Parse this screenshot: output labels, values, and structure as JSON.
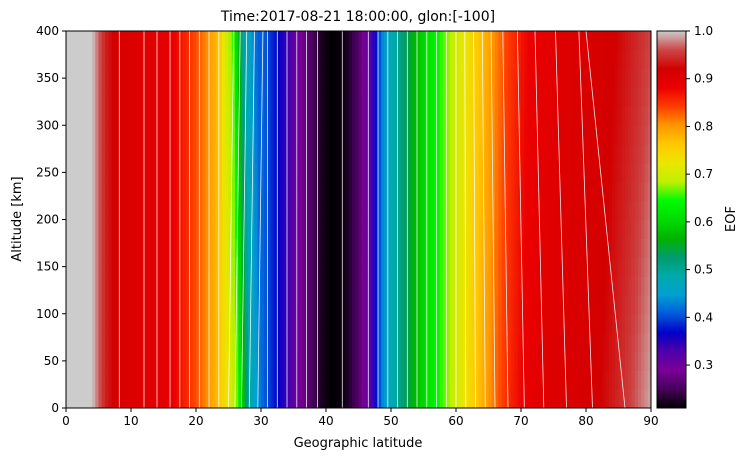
{
  "chart_data": {
    "type": "heatmap",
    "title": "Time:2017-08-21 18:00:00, glon:[-100]",
    "xlabel": "Geographic latitude",
    "ylabel": "Altitude [km]",
    "xlim": [
      0,
      90
    ],
    "ylim": [
      0,
      400
    ],
    "xticks": [
      0,
      10,
      20,
      30,
      40,
      50,
      60,
      70,
      80,
      90
    ],
    "yticks": [
      0,
      50,
      100,
      150,
      200,
      250,
      300,
      350,
      400
    ],
    "colorbar": {
      "label": "EOF",
      "range": [
        0.21,
        1.0
      ],
      "ticks": [
        "0.3",
        "0.4",
        "0.5",
        "0.6",
        "0.7",
        "0.8",
        "0.9",
        "1.0"
      ],
      "tick_values": [
        0.3,
        0.4,
        0.5,
        0.6,
        0.7,
        0.8,
        0.9,
        1.0
      ]
    },
    "latitude_profile": {
      "lat": [
        0,
        4,
        6,
        8,
        12,
        16,
        19,
        21,
        23,
        25,
        26.5,
        28,
        30,
        32,
        34,
        36,
        38,
        39.5,
        41,
        43,
        45,
        47,
        49,
        51,
        53,
        55,
        57,
        59,
        61,
        63,
        65,
        67,
        70,
        74,
        78,
        82,
        86,
        90
      ],
      "eof": [
        1.0,
        1.0,
        0.94,
        0.91,
        0.9,
        0.89,
        0.85,
        0.82,
        0.78,
        0.72,
        0.66,
        0.5,
        0.42,
        0.38,
        0.34,
        0.29,
        0.25,
        0.22,
        0.21,
        0.22,
        0.26,
        0.33,
        0.45,
        0.5,
        0.55,
        0.6,
        0.64,
        0.68,
        0.72,
        0.76,
        0.8,
        0.84,
        0.88,
        0.9,
        0.91,
        0.92,
        0.95,
        0.99
      ]
    },
    "tilt_km_per_deg_shift": "columns shift northward with altitude near 27 and 47 deg",
    "grid": false,
    "contours": "white lines, roughly vertical"
  }
}
